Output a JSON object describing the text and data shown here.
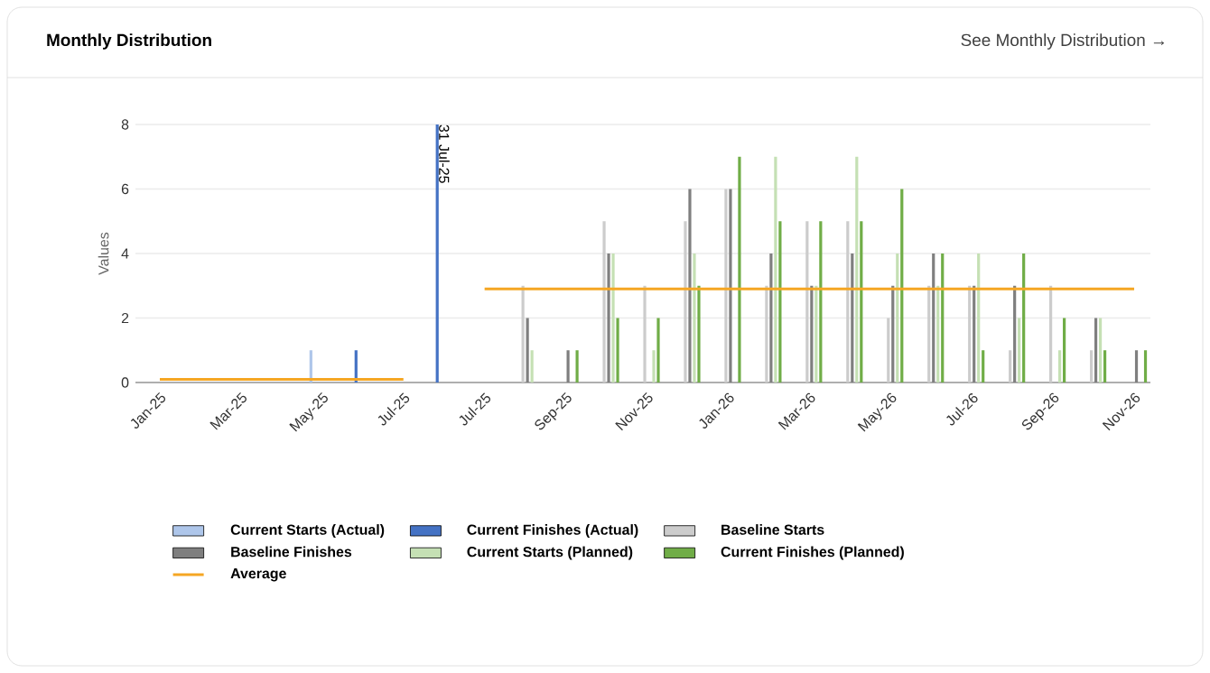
{
  "chart_data": {
    "type": "bar",
    "title": "Monthly Distribution",
    "annotations": [
      "See Monthly Distribution →",
      {
        "text": "31 Jul-25",
        "y": 8
      }
    ],
    "ylabel": "Values",
    "categories": [
      "Jan-25",
      null,
      "Mar-25",
      null,
      "May-25",
      null,
      "Jul-25",
      null,
      "Jul-25",
      null,
      "Sep-25",
      null,
      "Nov-25",
      null,
      "Jan-26",
      null,
      "Mar-26",
      null,
      "May-26",
      null,
      "Jul-26",
      null,
      "Sep-26",
      null,
      "Nov-26"
    ],
    "ylim": [
      0,
      8
    ],
    "yticks": [
      0,
      2,
      4,
      6,
      8
    ],
    "grid": "y",
    "legend": "bottom",
    "series": [
      {
        "name": "Current Starts (Actual)",
        "color": "#aec6ea",
        "values": [
          null,
          null,
          null,
          null,
          1,
          null,
          null,
          null,
          null,
          null,
          null,
          null,
          null,
          null,
          null,
          null,
          null,
          null,
          null,
          null,
          null,
          null,
          null,
          null,
          null
        ]
      },
      {
        "name": "Current Finishes (Actual)",
        "color": "#4472c4",
        "values": [
          null,
          null,
          null,
          null,
          null,
          1,
          null,
          8,
          null,
          null,
          null,
          null,
          null,
          null,
          null,
          null,
          null,
          null,
          null,
          null,
          null,
          null,
          null,
          null,
          null
        ]
      },
      {
        "name": "Baseline Starts",
        "color": "#cccccc",
        "values": [
          null,
          null,
          null,
          null,
          null,
          null,
          null,
          null,
          null,
          3,
          null,
          5,
          3,
          5,
          6,
          3,
          5,
          5,
          2,
          3,
          3,
          1,
          3,
          1,
          null
        ]
      },
      {
        "name": "Baseline Finishes",
        "color": "#7f7f7f",
        "values": [
          null,
          null,
          null,
          null,
          null,
          null,
          null,
          null,
          null,
          2,
          1,
          4,
          null,
          6,
          6,
          4,
          3,
          4,
          3,
          4,
          3,
          3,
          null,
          2,
          1
        ]
      },
      {
        "name": "Current Starts (Planned)",
        "color": "#c5e0b4",
        "values": [
          null,
          null,
          null,
          null,
          null,
          null,
          null,
          null,
          null,
          1,
          null,
          4,
          1,
          4,
          null,
          7,
          3,
          7,
          4,
          3,
          4,
          2,
          1,
          2,
          null
        ]
      },
      {
        "name": "Current Finishes (Planned)",
        "color": "#70ad47",
        "values": [
          null,
          null,
          null,
          null,
          null,
          null,
          null,
          null,
          null,
          null,
          1,
          2,
          2,
          3,
          7,
          5,
          5,
          5,
          6,
          4,
          1,
          4,
          2,
          1,
          1
        ]
      },
      {
        "name": "Average",
        "type": "line",
        "color": "#f5a623",
        "values": [
          0.1,
          0.1,
          0.1,
          0.1,
          0.1,
          0.1,
          0.1,
          null,
          2.9,
          2.9,
          2.9,
          2.9,
          2.9,
          2.9,
          2.9,
          2.9,
          2.9,
          2.9,
          2.9,
          2.9,
          2.9,
          2.9,
          2.9,
          2.9,
          2.9
        ]
      }
    ]
  }
}
